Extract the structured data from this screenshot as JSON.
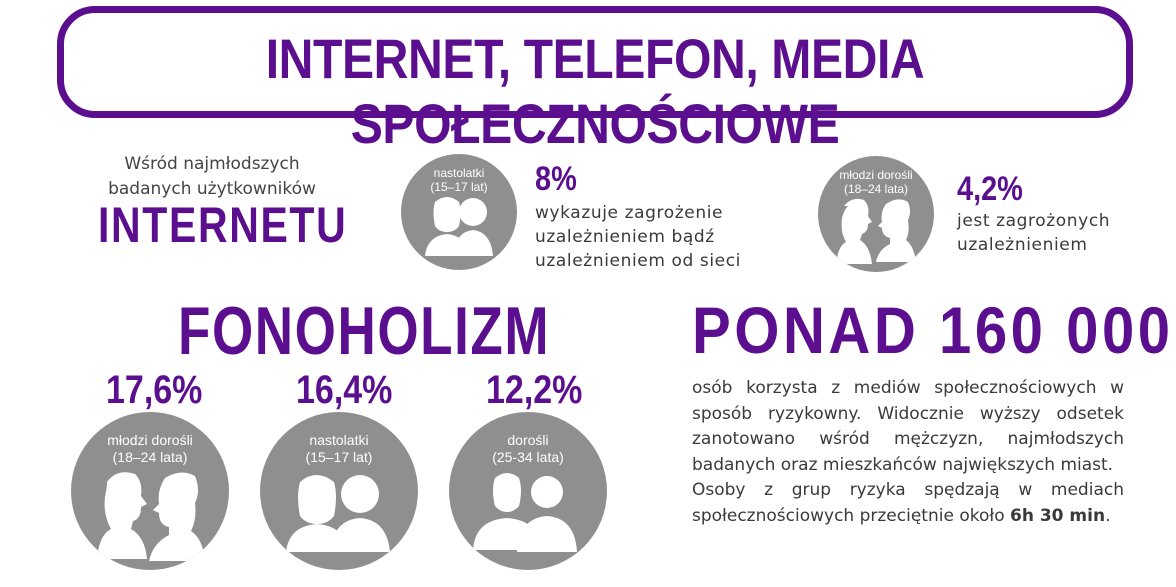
{
  "header": {
    "title": "INTERNET, TELEFON, MEDIA SPOŁECZNOŚCIOWE"
  },
  "internet": {
    "intro_line1": "Wśród najmłodszych",
    "intro_line2": "badanych użytkowników",
    "keyword": "INTERNETU",
    "teens": {
      "circle_line1": "nastolatki",
      "circle_line2": "(15–17 lat)",
      "percent": "8%",
      "desc_line1": "wykazuje zagrożenie",
      "desc_line2": "uzależnieniem bądź",
      "desc_line3": "uzależnieniem od sieci"
    },
    "young_adults": {
      "circle_line1": "młodzi dorośli",
      "circle_line2": "(18–24 lata)",
      "percent": "4,2%",
      "desc_line1": "jest zagrożonych",
      "desc_line2": "uzależnieniem"
    }
  },
  "phonoholism": {
    "keyword": "FONOHOLIZM",
    "groups": [
      {
        "percent": "17,6%",
        "label_line1": "młodzi dorośli",
        "label_line2": "(18–24 lata)",
        "icon": "profile-couple-icon"
      },
      {
        "percent": "16,4%",
        "label_line1": "nastolatki",
        "label_line2": "(15–17 lat)",
        "icon": "teens-icon"
      },
      {
        "percent": "12,2%",
        "label_line1": "dorośli",
        "label_line2": "(25-34 lata)",
        "icon": "adults-icon"
      }
    ]
  },
  "social_media": {
    "headline": "PONAD 160 000",
    "paragraph1": "osób korzysta z mediów społecznościowych w sposób ryzykowny. Widocznie wyższy odsetek zanotowano wśród mężczyzn, najmłodszych badanych oraz mieszkańców największych miast.",
    "paragraph2_text": "Osoby z grup ryzyka spędzają w mediach społecznościowych przeciętnie około ",
    "paragraph2_time": "6h 30 min",
    "paragraph2_end": "."
  },
  "colors": {
    "accent": "#5b0f8f",
    "circle_gray": "#8f8f8f",
    "text": "#3a3a3a"
  }
}
